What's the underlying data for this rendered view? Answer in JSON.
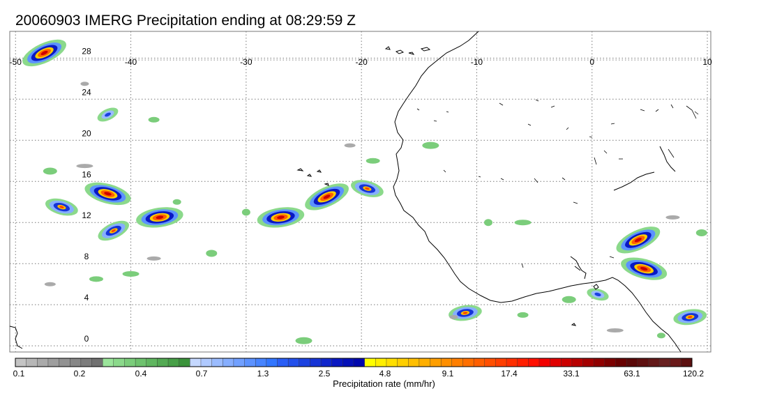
{
  "title": "20060903 IMERG Precipitation ending at 08:29:59 Z",
  "map": {
    "lon_range": [
      -50,
      10
    ],
    "lat_range": [
      -1,
      30
    ],
    "lon_ticks": [
      "-50",
      "-40",
      "-30",
      "-20",
      "-10",
      "0",
      "10"
    ],
    "lat_ticks": [
      "0",
      "4",
      "8",
      "12",
      "16",
      "20",
      "24",
      "28"
    ],
    "grid": true,
    "grid_style": "dotted",
    "coastline_color": "#000000",
    "frame_color": "#888888"
  },
  "colorbar": {
    "label": "Precipitation rate (mm/hr)",
    "tick_labels": [
      "0.1",
      "0.2",
      "0.4",
      "0.7",
      "1.3",
      "2.5",
      "4.8",
      "9.1",
      "17.4",
      "33.1",
      "63.1",
      "120.2"
    ],
    "colors": [
      "#c4c4c4",
      "#b7b7b7",
      "#aaaaaa",
      "#9e9e9e",
      "#929292",
      "#878787",
      "#7c7c7c",
      "#717171",
      "#9be59b",
      "#8bd98b",
      "#7bcd7b",
      "#6ec26e",
      "#60b660",
      "#53aa53",
      "#479f47",
      "#3b933b",
      "#c5d8ff",
      "#b0caff",
      "#9bbcff",
      "#86aeff",
      "#71a0ff",
      "#5c92ff",
      "#4784ff",
      "#3276ff",
      "#2a5ef5",
      "#2350eb",
      "#1c42e0",
      "#1634d6",
      "#1026cc",
      "#0a18c2",
      "#0510b8",
      "#0008ae",
      "#ffff00",
      "#ffef00",
      "#ffdf00",
      "#ffcf00",
      "#ffbf00",
      "#ffaf00",
      "#ff9f00",
      "#ff8f00",
      "#ff7f00",
      "#ff6f00",
      "#ff5f00",
      "#ff4f00",
      "#ff3f00",
      "#ff2f00",
      "#ff1f00",
      "#ff0f00",
      "#f20000",
      "#e00000",
      "#cc0000",
      "#b80000",
      "#a40000",
      "#900000",
      "#7c0000",
      "#680000",
      "#5a0808",
      "#5e1010",
      "#621818",
      "#682020",
      "#6a1a1a",
      "#5c1010"
    ]
  },
  "precip_cells": [
    {
      "lon": -47.5,
      "lat": 28.5,
      "level": "heavy"
    },
    {
      "lon": -42.0,
      "lat": 14.8,
      "level": "heavy"
    },
    {
      "lon": -37.5,
      "lat": 12.5,
      "level": "heavy"
    },
    {
      "lon": -41.5,
      "lat": 11.2,
      "level": "moderate"
    },
    {
      "lon": -46.0,
      "lat": 13.5,
      "level": "moderate"
    },
    {
      "lon": -27.0,
      "lat": 12.5,
      "level": "heavy"
    },
    {
      "lon": -23.0,
      "lat": 14.5,
      "level": "heavy"
    },
    {
      "lon": -19.5,
      "lat": 15.3,
      "level": "moderate"
    },
    {
      "lon": -11.0,
      "lat": 3.2,
      "level": "moderate"
    },
    {
      "lon": 4.0,
      "lat": 10.3,
      "level": "heavy"
    },
    {
      "lon": 4.5,
      "lat": 7.5,
      "level": "heavy"
    },
    {
      "lon": 8.5,
      "lat": 2.8,
      "level": "moderate"
    },
    {
      "lon": -42.0,
      "lat": 22.5,
      "level": "light"
    },
    {
      "lon": 0.5,
      "lat": 5.0,
      "level": "light"
    }
  ]
}
